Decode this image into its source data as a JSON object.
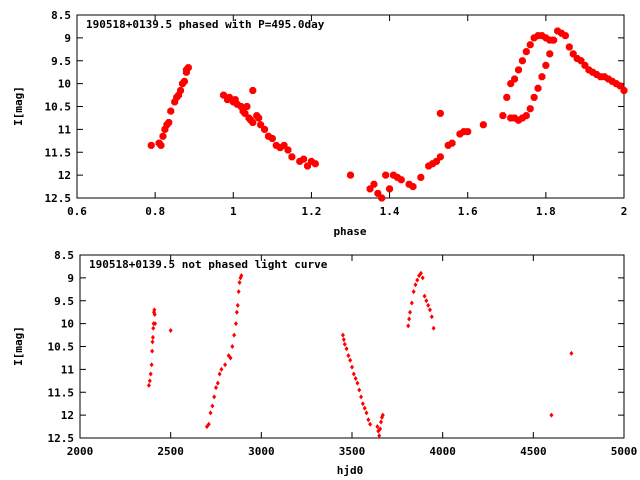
{
  "chart_data": [
    {
      "type": "scatter",
      "title": "190518+0139.5 phased with P=495.0day",
      "xlabel": "phase",
      "ylabel": "I[mag]",
      "xlim": [
        0.6,
        2.0
      ],
      "ylim": [
        12.5,
        8.5
      ],
      "y_inverted": true,
      "x_ticks": [
        "0.6",
        "0.8",
        "1",
        "1.2",
        "1.4",
        "1.6",
        "1.8",
        "2"
      ],
      "y_ticks": [
        "8.5",
        "9",
        "9.5",
        "10",
        "10.5",
        "11",
        "11.5",
        "12",
        "12.5"
      ],
      "grid": false,
      "marker_color": "#ff0000",
      "series": [
        {
          "x": [
            0.79,
            0.81,
            0.815,
            0.82,
            0.825,
            0.83,
            0.835,
            0.84,
            0.85,
            0.855,
            0.86,
            0.865,
            0.87,
            0.875,
            0.88,
            0.885,
            0.88,
            0.975,
            0.985,
            0.99,
            1.0,
            1.005,
            1.01,
            1.02,
            1.025,
            1.03,
            1.035,
            1.04,
            1.045,
            1.05,
            1.06,
            1.065,
            1.07,
            1.08,
            1.09,
            1.1,
            1.11,
            1.12,
            1.13,
            1.14,
            1.15,
            1.17,
            1.18,
            1.19,
            1.2,
            1.21,
            1.05,
            1.3,
            1.35,
            1.36,
            1.37,
            1.38,
            1.39,
            1.4,
            1.41,
            1.42,
            1.43,
            1.45,
            1.46,
            1.48,
            1.5,
            1.51,
            1.52,
            1.53,
            1.55,
            1.56,
            1.58,
            1.59,
            1.6,
            1.64,
            1.53,
            1.69,
            1.7,
            1.71,
            1.72,
            1.73,
            1.74,
            1.75,
            1.76,
            1.77,
            1.78,
            1.79,
            1.8,
            1.81,
            1.82,
            1.83,
            1.84,
            1.85,
            1.86,
            1.87,
            1.88,
            1.89,
            1.9,
            1.91,
            1.92,
            1.93,
            1.94,
            1.95,
            1.96,
            1.97,
            1.98,
            1.99,
            2.0,
            1.71,
            1.72,
            1.73,
            1.74,
            1.75,
            1.76,
            1.77,
            1.78,
            1.79,
            1.8,
            1.81
          ],
          "y": [
            11.35,
            11.3,
            11.35,
            11.15,
            11.0,
            10.9,
            10.85,
            10.6,
            10.4,
            10.3,
            10.25,
            10.15,
            10.0,
            9.95,
            9.75,
            9.65,
            9.7,
            10.25,
            10.35,
            10.3,
            10.4,
            10.35,
            10.45,
            10.5,
            10.6,
            10.65,
            10.5,
            10.75,
            10.8,
            10.85,
            10.7,
            10.75,
            10.9,
            11.0,
            11.15,
            11.2,
            11.35,
            11.4,
            11.35,
            11.45,
            11.6,
            11.7,
            11.65,
            11.8,
            11.7,
            11.75,
            10.15,
            12.0,
            12.3,
            12.2,
            12.4,
            12.5,
            12.0,
            12.3,
            12.0,
            12.05,
            12.1,
            12.2,
            12.25,
            12.05,
            11.8,
            11.75,
            11.7,
            11.6,
            11.35,
            11.3,
            11.1,
            11.05,
            11.05,
            10.9,
            10.65,
            10.7,
            10.3,
            10.0,
            9.9,
            9.7,
            9.5,
            9.3,
            9.15,
            9.0,
            8.95,
            8.95,
            9.0,
            9.05,
            9.05,
            8.85,
            8.9,
            8.95,
            9.2,
            9.35,
            9.45,
            9.5,
            9.6,
            9.7,
            9.75,
            9.8,
            9.85,
            9.85,
            9.9,
            9.95,
            10.0,
            10.05,
            10.15,
            10.75,
            10.75,
            10.8,
            10.75,
            10.7,
            10.55,
            10.3,
            10.1,
            9.85,
            9.6,
            9.35
          ]
        }
      ]
    },
    {
      "type": "scatter",
      "title": "190518+0139.5 not phased light curve",
      "xlabel": "hjd0",
      "ylabel": "I[mag]",
      "xlim": [
        2000,
        5000
      ],
      "ylim": [
        12.5,
        8.5
      ],
      "y_inverted": true,
      "x_ticks": [
        "2000",
        "2500",
        "3000",
        "3500",
        "4000",
        "4500",
        "5000"
      ],
      "y_ticks": [
        "8.5",
        "9",
        "9.5",
        "10",
        "10.5",
        "11",
        "11.5",
        "12",
        "12.5"
      ],
      "grid": false,
      "marker_color": "#ff0000",
      "series": [
        {
          "x": [
            2380,
            2385,
            2390,
            2395,
            2398,
            2400,
            2402,
            2404,
            2406,
            2408,
            2410,
            2412,
            2414,
            2500,
            2700,
            2710,
            2720,
            2730,
            2740,
            2750,
            2760,
            2770,
            2780,
            2800,
            2820,
            2830,
            2840,
            2850,
            2860,
            2865,
            2870,
            2875,
            2880,
            2885,
            2890,
            3450,
            3455,
            3460,
            3470,
            3480,
            3490,
            3500,
            3510,
            3520,
            3530,
            3540,
            3550,
            3560,
            3570,
            3580,
            3590,
            3600,
            3640,
            3645,
            3650,
            3655,
            3660,
            3665,
            3670,
            3810,
            3815,
            3820,
            3830,
            3840,
            3850,
            3860,
            3870,
            3880,
            3890,
            3900,
            3910,
            3920,
            3930,
            3940,
            3950,
            4600,
            4710
          ],
          "y": [
            11.35,
            11.25,
            11.1,
            10.9,
            10.6,
            10.4,
            10.3,
            10.1,
            10.0,
            9.75,
            9.7,
            9.8,
            10.0,
            10.15,
            12.25,
            12.2,
            11.95,
            11.8,
            11.6,
            11.4,
            11.3,
            11.1,
            11.0,
            10.9,
            10.7,
            10.75,
            10.5,
            10.25,
            10.0,
            9.75,
            9.6,
            9.3,
            9.1,
            9.0,
            8.95,
            10.25,
            10.35,
            10.45,
            10.55,
            10.7,
            10.8,
            10.95,
            11.1,
            11.2,
            11.3,
            11.45,
            11.6,
            11.75,
            11.85,
            11.95,
            12.1,
            12.2,
            12.25,
            12.35,
            12.45,
            12.3,
            12.15,
            12.05,
            12.0,
            10.05,
            9.9,
            9.75,
            9.55,
            9.3,
            9.15,
            9.05,
            8.95,
            8.9,
            9.0,
            9.4,
            9.5,
            9.6,
            9.7,
            9.85,
            10.1,
            12.0,
            10.65
          ]
        }
      ]
    }
  ]
}
